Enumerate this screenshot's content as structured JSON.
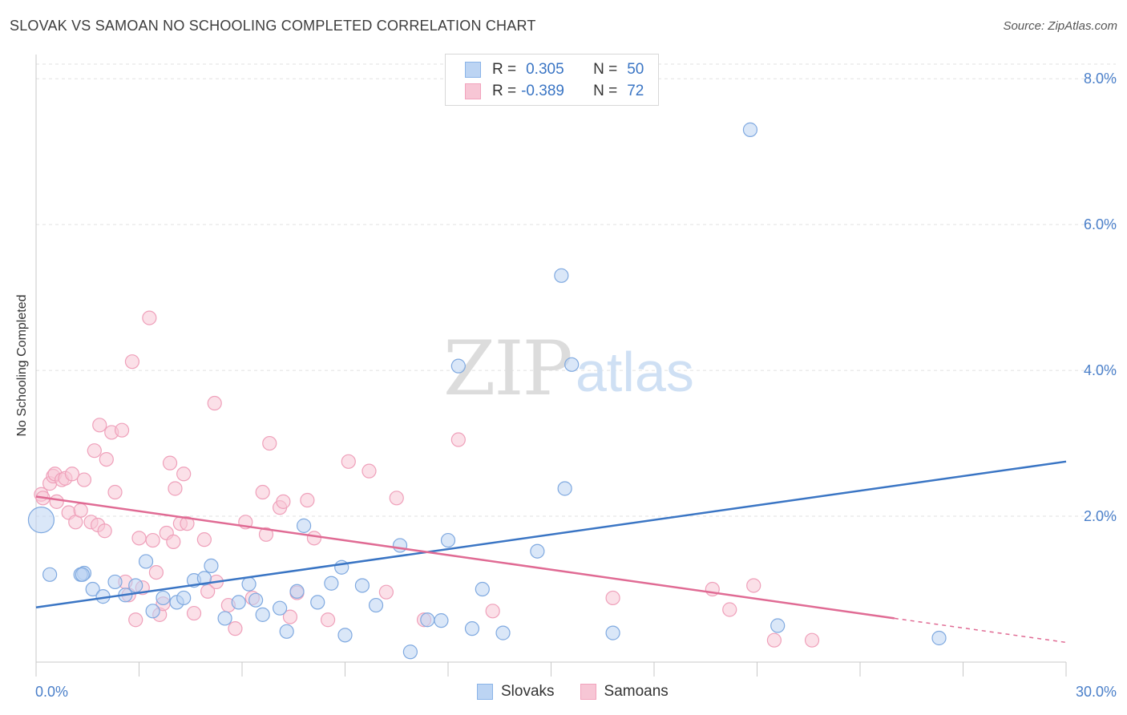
{
  "header": {
    "title": "SLOVAK VS SAMOAN NO SCHOOLING COMPLETED CORRELATION CHART",
    "source": "Source: ZipAtlas.com"
  },
  "watermark": {
    "zip": "ZIP",
    "atlas": "atlas"
  },
  "legend_top": {
    "rows": [
      {
        "r_label": "R =",
        "r_value": "0.305",
        "n_label": "N =",
        "n_value": "50",
        "color": "#8ab4e8"
      },
      {
        "r_label": "R =",
        "r_value": "-0.389",
        "n_label": "N =",
        "n_value": "72",
        "color": "#f2a3bd"
      }
    ]
  },
  "legend_bottom": {
    "items": [
      {
        "label": "Slovaks",
        "color": "#8ab4e8"
      },
      {
        "label": "Samoans",
        "color": "#f2a3bd"
      }
    ]
  },
  "chart_data": {
    "type": "scatter",
    "title": "SLOVAK VS SAMOAN NO SCHOOLING COMPLETED CORRELATION CHART",
    "xlabel": "",
    "ylabel": "No Schooling Completed",
    "xlim": [
      0,
      30
    ],
    "ylim": [
      0,
      8.2
    ],
    "x_tick_labels": [
      "0.0%",
      "30.0%"
    ],
    "y_ticks": [
      2,
      4,
      6,
      8
    ],
    "y_tick_labels": [
      "2.0%",
      "4.0%",
      "6.0%",
      "8.0%"
    ],
    "grid": true,
    "series": [
      {
        "name": "Slovaks",
        "color": "#3a75c4",
        "fill": "#bcd4f3",
        "trend": {
          "x0": 0,
          "y0": 0.75,
          "x1": 30,
          "y1": 2.75
        },
        "points": [
          [
            0.15,
            1.95,
            "large"
          ],
          [
            0.4,
            1.2
          ],
          [
            1.4,
            1.22
          ],
          [
            1.3,
            1.2
          ],
          [
            1.35,
            1.2
          ],
          [
            1.65,
            1.0
          ],
          [
            1.95,
            0.9
          ],
          [
            2.3,
            1.1
          ],
          [
            2.6,
            0.92
          ],
          [
            2.9,
            1.05
          ],
          [
            3.2,
            1.38
          ],
          [
            3.4,
            0.7
          ],
          [
            3.7,
            0.88
          ],
          [
            4.1,
            0.82
          ],
          [
            4.3,
            0.88
          ],
          [
            4.6,
            1.12
          ],
          [
            4.9,
            1.15
          ],
          [
            5.1,
            1.32
          ],
          [
            5.5,
            0.6
          ],
          [
            5.9,
            0.82
          ],
          [
            6.2,
            1.07
          ],
          [
            6.4,
            0.85
          ],
          [
            6.6,
            0.65
          ],
          [
            7.1,
            0.74
          ],
          [
            7.3,
            0.42
          ],
          [
            7.6,
            0.97
          ],
          [
            7.8,
            1.87
          ],
          [
            8.2,
            0.82
          ],
          [
            8.6,
            1.08
          ],
          [
            8.9,
            1.3
          ],
          [
            9.0,
            0.37
          ],
          [
            9.5,
            1.05
          ],
          [
            9.9,
            0.78
          ],
          [
            10.6,
            1.6
          ],
          [
            10.9,
            0.14
          ],
          [
            11.4,
            0.58
          ],
          [
            11.8,
            0.57
          ],
          [
            12.0,
            1.67
          ],
          [
            12.3,
            4.06
          ],
          [
            12.7,
            0.46
          ],
          [
            13.0,
            1.0
          ],
          [
            13.6,
            0.4
          ],
          [
            14.6,
            1.52
          ],
          [
            15.3,
            5.3
          ],
          [
            15.4,
            2.38
          ],
          [
            15.6,
            4.08
          ],
          [
            16.8,
            0.4
          ],
          [
            20.8,
            7.3
          ],
          [
            21.6,
            0.5
          ],
          [
            26.3,
            0.33
          ]
        ]
      },
      {
        "name": "Samoans",
        "color": "#e06b94",
        "fill": "#f7c6d5",
        "trend": {
          "x0": 0,
          "y0": 2.27,
          "x1": 25,
          "y1": 0.6
        },
        "trend_dashed": {
          "x0": 25,
          "y0": 0.6,
          "x1": 30,
          "y1": 0.27
        },
        "points": [
          [
            0.15,
            2.3
          ],
          [
            0.2,
            2.25
          ],
          [
            0.4,
            2.45
          ],
          [
            0.5,
            2.55
          ],
          [
            0.55,
            2.58
          ],
          [
            0.6,
            2.2
          ],
          [
            0.75,
            2.5
          ],
          [
            0.85,
            2.52
          ],
          [
            0.95,
            2.05
          ],
          [
            1.05,
            2.58
          ],
          [
            1.15,
            1.92
          ],
          [
            1.3,
            2.08
          ],
          [
            1.4,
            2.5
          ],
          [
            1.6,
            1.92
          ],
          [
            1.7,
            2.9
          ],
          [
            1.8,
            1.88
          ],
          [
            1.85,
            3.25
          ],
          [
            2.0,
            1.8
          ],
          [
            2.05,
            2.78
          ],
          [
            2.2,
            3.15
          ],
          [
            2.3,
            2.33
          ],
          [
            2.5,
            3.18
          ],
          [
            2.6,
            1.1
          ],
          [
            2.7,
            0.92
          ],
          [
            2.8,
            4.12
          ],
          [
            2.9,
            0.58
          ],
          [
            3.0,
            1.7
          ],
          [
            3.1,
            1.02
          ],
          [
            3.3,
            4.72
          ],
          [
            3.4,
            1.67
          ],
          [
            3.5,
            1.23
          ],
          [
            3.6,
            0.65
          ],
          [
            3.7,
            0.8
          ],
          [
            3.8,
            1.77
          ],
          [
            3.9,
            2.73
          ],
          [
            4.0,
            1.65
          ],
          [
            4.05,
            2.38
          ],
          [
            4.2,
            1.9
          ],
          [
            4.3,
            2.58
          ],
          [
            4.4,
            1.9
          ],
          [
            4.6,
            0.67
          ],
          [
            4.9,
            1.68
          ],
          [
            5.0,
            0.97
          ],
          [
            5.2,
            3.55
          ],
          [
            5.25,
            1.1
          ],
          [
            5.6,
            0.78
          ],
          [
            5.8,
            0.46
          ],
          [
            6.1,
            1.92
          ],
          [
            6.3,
            0.88
          ],
          [
            6.6,
            2.33
          ],
          [
            6.7,
            1.75
          ],
          [
            6.8,
            3.0
          ],
          [
            7.1,
            2.12
          ],
          [
            7.2,
            2.2
          ],
          [
            7.4,
            0.62
          ],
          [
            7.6,
            0.95
          ],
          [
            7.9,
            2.22
          ],
          [
            8.1,
            1.7
          ],
          [
            8.5,
            0.58
          ],
          [
            9.1,
            2.75
          ],
          [
            9.7,
            2.62
          ],
          [
            10.2,
            0.96
          ],
          [
            10.5,
            2.25
          ],
          [
            11.3,
            0.58
          ],
          [
            12.3,
            3.05
          ],
          [
            13.3,
            0.7
          ],
          [
            16.8,
            0.88
          ],
          [
            19.7,
            1.0
          ],
          [
            20.2,
            0.72
          ],
          [
            20.9,
            1.05
          ],
          [
            21.5,
            0.3
          ],
          [
            22.6,
            0.3
          ]
        ]
      }
    ]
  }
}
